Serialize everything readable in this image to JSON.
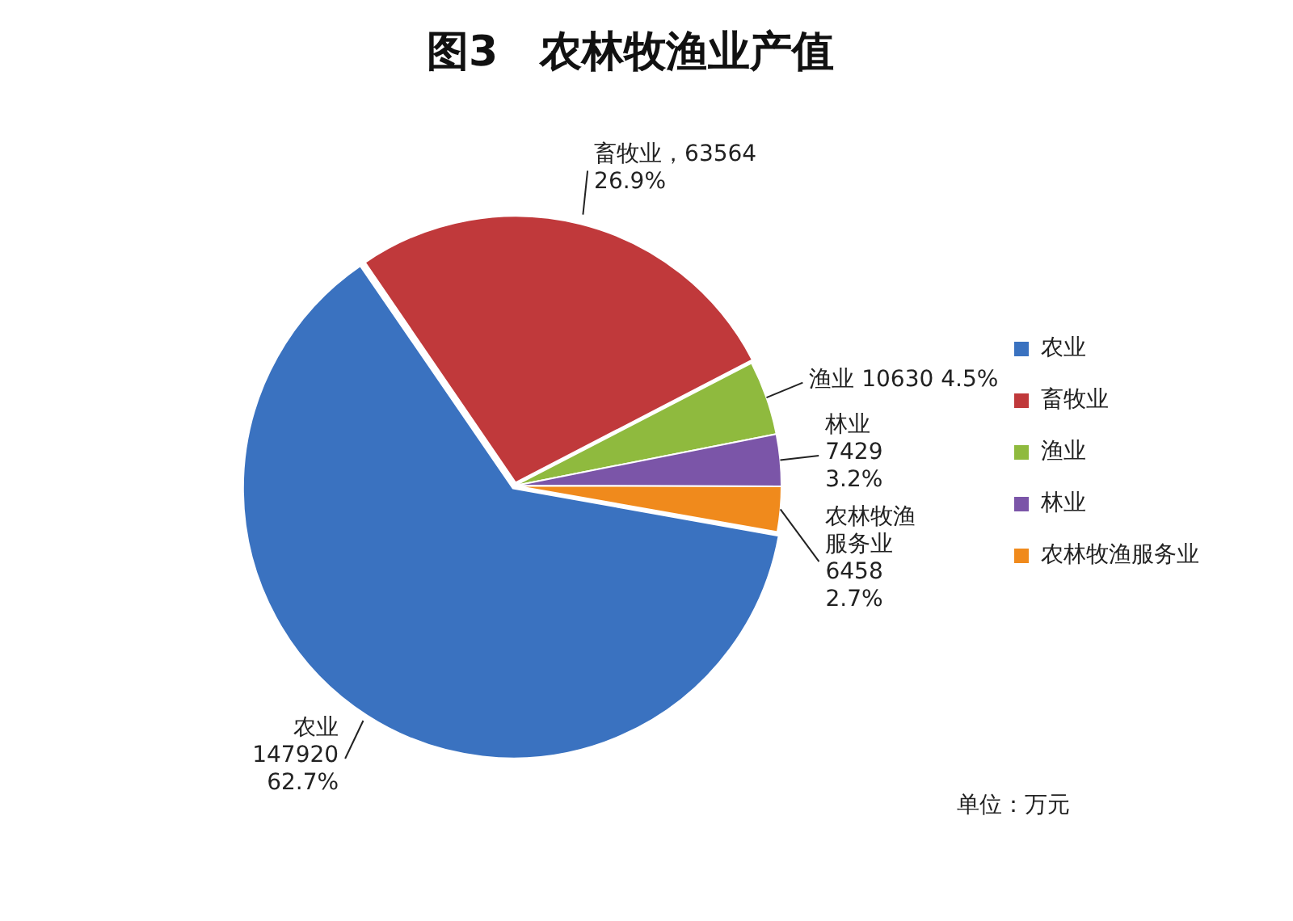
{
  "chart_data": {
    "type": "pie",
    "title": "图3　农林牧渔业产值",
    "categories": [
      "农业",
      "畜牧业",
      "渔业",
      "林业",
      "农林牧渔服务业"
    ],
    "values": [
      147920,
      63564,
      10630,
      7429,
      6458
    ],
    "colors": [
      "#3a72c0",
      "#c0393b",
      "#8fba3e",
      "#7b55a8",
      "#f08a1c"
    ],
    "value_labels": [
      "农业\n147920\n62.7%",
      "畜牧业，63564\n26.9%",
      "渔业 10630 4.5%",
      "林业\n7429\n3.2%",
      "农林牧渔服务业\n6458\n2.7%"
    ],
    "legend": "right",
    "annotations": [
      "单位：万元"
    ]
  }
}
